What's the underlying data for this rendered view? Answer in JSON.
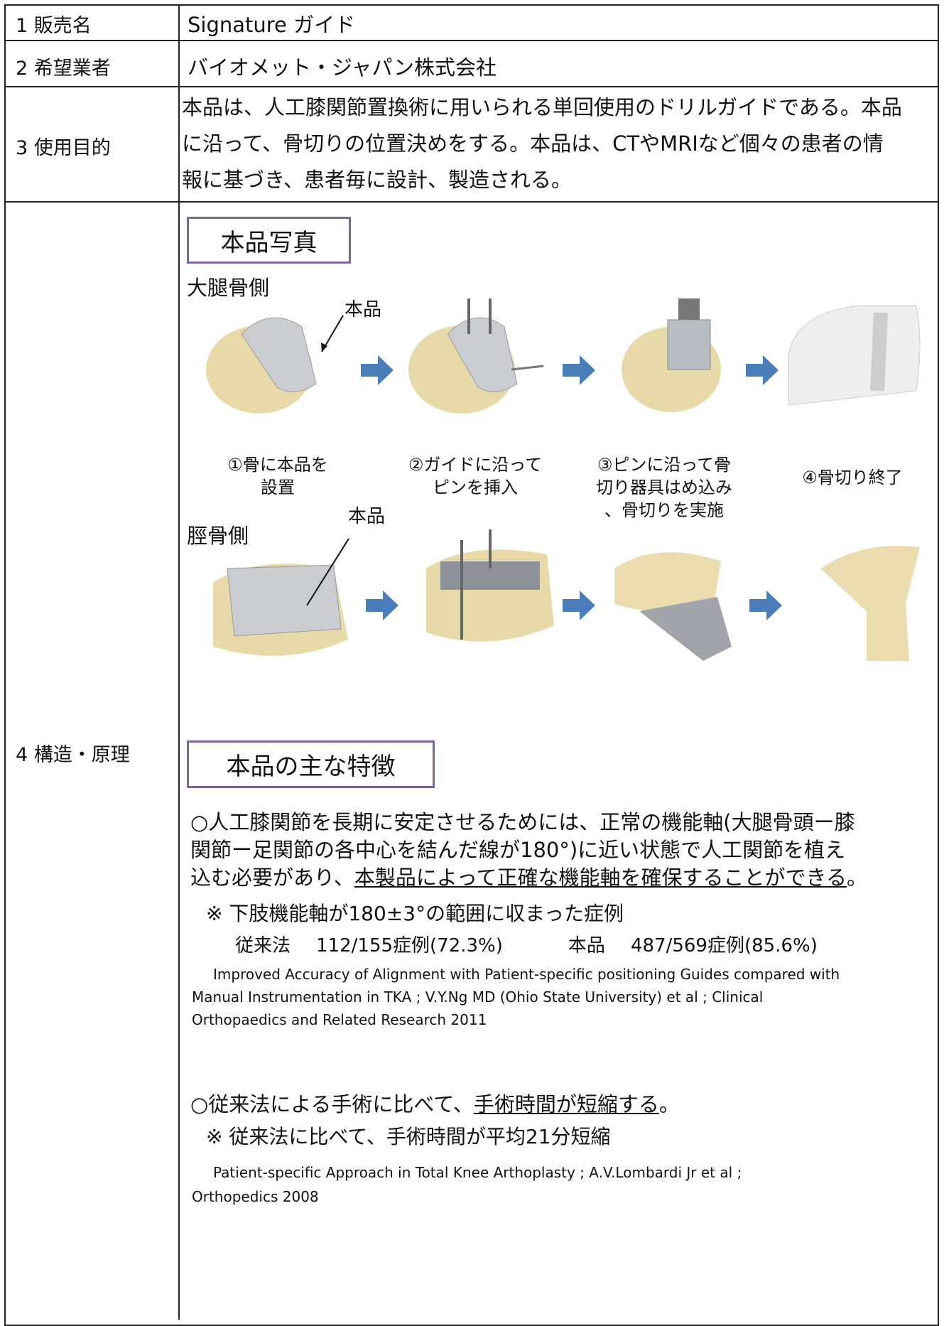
{
  "table": {
    "rows": [
      {
        "label": "1 販売名",
        "content": "Signature ガイド"
      },
      {
        "label": "2 希望業者",
        "content": "バイオメット・ジャパン株式会社"
      },
      {
        "label": "3 使用目的",
        "lines": [
          "本品は、人工膝関節置換術に用いられる単回使用のドリルガイドである。本品",
          "に沿って、骨切りの位置決めをする。本品は、CTやMRIなど個々の患者の情",
          "報に基づき、患者毎に設計、製造される。"
        ]
      },
      {
        "label": "4 構造・原理"
      }
    ]
  },
  "photos": {
    "heading": "本品写真",
    "femur": {
      "label": "大腿骨側",
      "pointer": "本品",
      "steps": [
        [
          "①骨に本品を",
          "設置"
        ],
        [
          "②ガイドに沿って",
          "ピンを挿入"
        ],
        [
          "③ピンに沿って骨",
          "切り器具はめ込み",
          "、骨切りを実施"
        ],
        [
          "④骨切り終了"
        ]
      ]
    },
    "tibia": {
      "label": "脛骨側",
      "pointer": "本品"
    }
  },
  "features": {
    "heading": "本品の主な特徴",
    "accuracy": {
      "lines": [
        "○人工膝関節を長期に安定させるためには、正常の機能軸(大腿骨頭ー膝",
        "関節ー足関節の各中心を結んだ線が180°)に近い状態で人工関節を植え",
        "込む必要があり、"
      ],
      "emphasis": "本製品によって正確な機能軸を確保することができる",
      "end": "。",
      "note": "※ 下肢機能軸が180±3°の範囲に収まった症例",
      "conventional_label": "従来法",
      "conventional_result": "112/155症例(72.3%)",
      "product_label": "本品",
      "product_result": "487/569症例(85.6%)",
      "reference_lines": [
        "Improved Accuracy of Alignment with Patient-specific positioning Guides compared with",
        "Manual Instrumentation in TKA ; V.Y.Ng MD (Ohio State University) et al ; Clinical",
        "Orthopaedics and Related Research 2011"
      ]
    },
    "time": {
      "lead": "○従来法による手術に比べて、",
      "emphasis": "手術時間が短縮する",
      "end": "。",
      "note": "※ 従来法に比べて、手術時間が平均21分短縮",
      "reference_lines": [
        "Patient-specific Approach in Total Knee Arthoplasty ; A.V.Lombardi Jr et al ;",
        "Orthopedics 2008"
      ]
    }
  }
}
